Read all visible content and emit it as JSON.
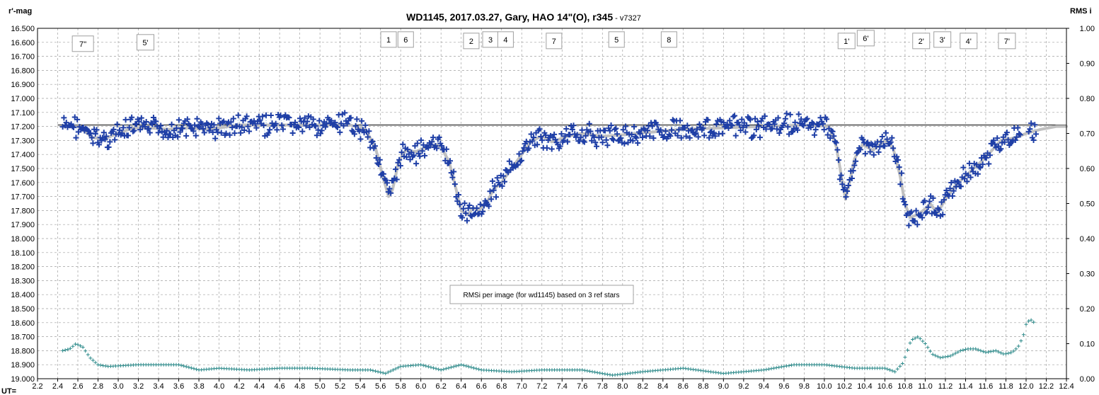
{
  "chart_data": {
    "type": "scatter",
    "title": "WD1145, 2017.03.27,  Gary, HAO 14\"(O), r345",
    "version": " - v7327",
    "ylabel": "r'-mag",
    "y2label": "RMS i",
    "xlabel": "UT=",
    "xlim": [
      2.2,
      12.4
    ],
    "ylim": [
      16.5,
      19.0
    ],
    "y2lim": [
      1.0,
      0.0
    ],
    "x_ticks": [
      "2.2",
      "2.4",
      "2.6",
      "2.8",
      "3.0",
      "3.2",
      "3.4",
      "3.6",
      "3.8",
      "4.0",
      "4.2",
      "4.4",
      "4.6",
      "4.8",
      "5.0",
      "5.2",
      "5.4",
      "5.6",
      "5.8",
      "6.0",
      "6.2",
      "6.4",
      "6.6",
      "6.8",
      "7.0",
      "7.2",
      "7.4",
      "7.6",
      "7.8",
      "8.0",
      "8.2",
      "8.4",
      "8.6",
      "8.8",
      "9.0",
      "9.2",
      "9.4",
      "9.6",
      "9.8",
      "10.0",
      "10.2",
      "10.4",
      "10.6",
      "10.8",
      "11.0",
      "11.2",
      "11.4",
      "11.6",
      "11.8",
      "12.0",
      "12.2",
      "12.4"
    ],
    "y_ticks": [
      "16.500",
      "16.600",
      "16.700",
      "16.800",
      "16.900",
      "17.000",
      "17.100",
      "17.200",
      "17.300",
      "17.400",
      "17.500",
      "17.600",
      "17.700",
      "17.800",
      "17.900",
      "18.000",
      "18.100",
      "18.200",
      "18.300",
      "18.400",
      "18.500",
      "18.600",
      "18.700",
      "18.800",
      "18.900",
      "19.000"
    ],
    "y2_ticks": [
      "1.00",
      "0.90",
      "0.80",
      "0.70",
      "0.60",
      "0.50",
      "0.40",
      "0.30",
      "0.20",
      "0.10",
      "0.00"
    ],
    "grid": true,
    "reference_level": 17.19,
    "annotations": [
      {
        "label": "7''",
        "x": 2.65,
        "y": 16.61
      },
      {
        "label": "5'",
        "x": 3.27,
        "y": 16.6
      },
      {
        "label": "1",
        "x": 5.68,
        "y": 16.58
      },
      {
        "label": "6",
        "x": 5.85,
        "y": 16.58
      },
      {
        "label": "2",
        "x": 6.5,
        "y": 16.59
      },
      {
        "label": "3",
        "x": 6.69,
        "y": 16.58
      },
      {
        "label": "4",
        "x": 6.84,
        "y": 16.58
      },
      {
        "label": "7",
        "x": 7.32,
        "y": 16.59
      },
      {
        "label": "5",
        "x": 7.94,
        "y": 16.58
      },
      {
        "label": "8",
        "x": 8.46,
        "y": 16.58
      },
      {
        "label": "1'",
        "x": 10.22,
        "y": 16.59
      },
      {
        "label": "6'",
        "x": 10.41,
        "y": 16.57
      },
      {
        "label": "2'",
        "x": 10.96,
        "y": 16.59
      },
      {
        "label": "3'",
        "x": 11.17,
        "y": 16.58
      },
      {
        "label": "4'",
        "x": 11.43,
        "y": 16.59
      },
      {
        "label": "7'",
        "x": 11.81,
        "y": 16.59
      }
    ],
    "note": "RMSi per image (for wd1145) based on 3 ref stars",
    "smooth_model": {
      "x": [
        2.45,
        2.6,
        2.75,
        2.85,
        3.0,
        3.15,
        3.3,
        3.5,
        3.7,
        3.85,
        4.0,
        4.2,
        4.5,
        5.0,
        5.3,
        5.45,
        5.55,
        5.62,
        5.68,
        5.72,
        5.78,
        5.85,
        5.95,
        6.05,
        6.15,
        6.2,
        6.28,
        6.35,
        6.4,
        6.47,
        6.52,
        6.57,
        6.65,
        6.72,
        6.8,
        6.9,
        7.0,
        7.1,
        7.2,
        7.3,
        7.45,
        7.6,
        7.8,
        8.0,
        8.3,
        8.6,
        9.0,
        9.4,
        9.8,
        10.05,
        10.12,
        10.18,
        10.21,
        10.25,
        10.3,
        10.38,
        10.48,
        10.6,
        10.68,
        10.75,
        10.8,
        10.85,
        10.92,
        10.98,
        11.05,
        11.12,
        11.2,
        11.3,
        11.45,
        11.6,
        11.75,
        11.9,
        12.0,
        12.15,
        12.3,
        12.4
      ],
      "mag": [
        17.2,
        17.2,
        17.28,
        17.29,
        17.25,
        17.21,
        17.21,
        17.22,
        17.21,
        17.22,
        17.21,
        17.19,
        17.19,
        17.19,
        17.19,
        17.22,
        17.35,
        17.55,
        17.7,
        17.65,
        17.45,
        17.37,
        17.38,
        17.35,
        17.33,
        17.35,
        17.45,
        17.65,
        17.8,
        17.83,
        17.78,
        17.8,
        17.75,
        17.65,
        17.6,
        17.5,
        17.4,
        17.3,
        17.27,
        17.31,
        17.27,
        17.25,
        17.27,
        17.26,
        17.24,
        17.22,
        17.21,
        17.2,
        17.19,
        17.2,
        17.35,
        17.6,
        17.72,
        17.6,
        17.43,
        17.33,
        17.37,
        17.3,
        17.35,
        17.55,
        17.75,
        17.85,
        17.83,
        17.8,
        17.75,
        17.82,
        17.72,
        17.62,
        17.52,
        17.42,
        17.3,
        17.28,
        17.25,
        17.22,
        17.2,
        17.2
      ]
    },
    "rms_curve": {
      "x": [
        2.45,
        2.52,
        2.58,
        2.65,
        2.72,
        2.8,
        2.9,
        3.2,
        3.6,
        3.8,
        4.0,
        4.3,
        4.6,
        4.9,
        5.3,
        5.5,
        5.65,
        5.8,
        6.0,
        6.2,
        6.4,
        6.6,
        6.9,
        7.2,
        7.6,
        7.9,
        8.2,
        8.6,
        9.0,
        9.4,
        9.7,
        10.0,
        10.3,
        10.6,
        10.7,
        10.78,
        10.86,
        10.93,
        11.0,
        11.07,
        11.15,
        11.25,
        11.35,
        11.42,
        11.5,
        11.6,
        11.7,
        11.78,
        11.86,
        11.92,
        11.97,
        12.0,
        12.04,
        12.08
      ],
      "rms": [
        0.08,
        0.085,
        0.1,
        0.09,
        0.06,
        0.04,
        0.035,
        0.04,
        0.04,
        0.025,
        0.03,
        0.025,
        0.03,
        0.03,
        0.025,
        0.025,
        0.015,
        0.035,
        0.04,
        0.025,
        0.04,
        0.025,
        0.02,
        0.025,
        0.025,
        0.01,
        0.02,
        0.03,
        0.015,
        0.025,
        0.04,
        0.04,
        0.03,
        0.03,
        0.02,
        0.045,
        0.11,
        0.12,
        0.1,
        0.07,
        0.06,
        0.065,
        0.08,
        0.085,
        0.085,
        0.075,
        0.08,
        0.07,
        0.075,
        0.09,
        0.12,
        0.155,
        0.17,
        0.16
      ]
    },
    "colors": {
      "data": "#1f3fa6",
      "data_line": "#7fb0e0",
      "model": "#c0c0c0",
      "rms": "#2e8b8b",
      "reference": "#000000",
      "grid": "#a0a0a0"
    }
  }
}
